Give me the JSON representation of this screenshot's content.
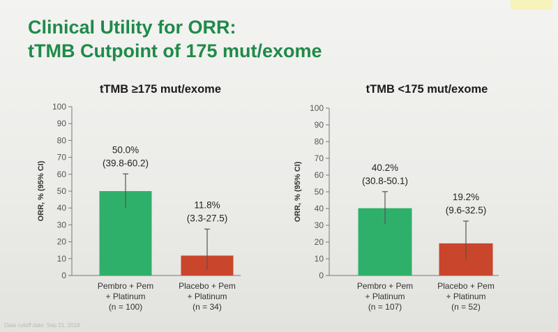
{
  "slide": {
    "title_line1": "Clinical Utility for ORR:",
    "title_line2": "tTMB Cutpoint of 175 mut/exome",
    "footnote": "Data cutoff date: Sep 21, 2018"
  },
  "colors": {
    "green": "#2fb06a",
    "red": "#c9452b",
    "title": "#1f8a4a"
  },
  "chart_data": [
    {
      "type": "bar",
      "title": "tTMB ≥175 mut/exome",
      "ylabel": "ORR, % (95% CI)",
      "ylim": [
        0,
        100
      ],
      "yticks": [
        0,
        10,
        20,
        30,
        40,
        50,
        60,
        70,
        80,
        90,
        100
      ],
      "categories": [
        [
          "Pembro + Pem",
          "+ Platinum",
          "(n = 100)"
        ],
        [
          "Placebo + Pem",
          "+ Platinum",
          "(n = 34)"
        ]
      ],
      "values": [
        50.0,
        11.8
      ],
      "ci_low": [
        39.8,
        3.3
      ],
      "ci_high": [
        60.2,
        27.5
      ],
      "value_labels": [
        "50.0%",
        "11.8%"
      ],
      "ci_labels": [
        "(39.8-60.2)",
        "(3.3-27.5)"
      ],
      "bar_colors": [
        "#2fb06a",
        "#c9452b"
      ]
    },
    {
      "type": "bar",
      "title": "tTMB <175 mut/exome",
      "ylabel": "ORR, % (95% CI)",
      "ylim": [
        0,
        100
      ],
      "yticks": [
        0,
        10,
        20,
        30,
        40,
        50,
        60,
        70,
        80,
        90,
        100
      ],
      "categories": [
        [
          "Pembro + Pem",
          "+ Platinum",
          "(n = 107)"
        ],
        [
          "Placebo + Pem",
          "+ Platinum",
          "(n = 52)"
        ]
      ],
      "values": [
        40.2,
        19.2
      ],
      "ci_low": [
        30.8,
        9.6
      ],
      "ci_high": [
        50.1,
        32.5
      ],
      "value_labels": [
        "40.2%",
        "19.2%"
      ],
      "ci_labels": [
        "(30.8-50.1)",
        "(9.6-32.5)"
      ],
      "bar_colors": [
        "#2fb06a",
        "#c9452b"
      ]
    }
  ]
}
